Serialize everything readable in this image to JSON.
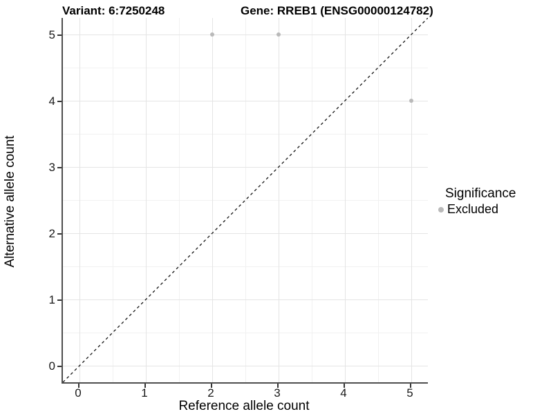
{
  "titles": {
    "variant": "Variant: 6:7250248",
    "gene": "Gene: RREB1 (ENSG00000124782)"
  },
  "legend": {
    "title": "Significance",
    "items": [
      {
        "label": "Excluded",
        "color": "#b9b9b9"
      }
    ]
  },
  "chart_data": {
    "type": "scatter",
    "title": "Variant: 6:7250248 | Gene: RREB1 (ENSG00000124782)",
    "xlabel": "Reference allele count",
    "ylabel": "Alternative allele count",
    "x_ticks": [
      0,
      1,
      2,
      3,
      4,
      5
    ],
    "y_ticks": [
      0,
      1,
      2,
      3,
      4,
      5
    ],
    "xlim": [
      -0.25,
      5.25
    ],
    "ylim": [
      -0.25,
      5.25
    ],
    "grid": true,
    "legend_position": "right",
    "series": [
      {
        "name": "Excluded",
        "color": "#b9b9b9",
        "points": [
          [
            2,
            5
          ],
          [
            3,
            5
          ],
          [
            5,
            4
          ]
        ]
      }
    ],
    "reference_line": {
      "type": "identity y=x",
      "style": "dashed",
      "color": "#111111"
    }
  },
  "colors": {
    "background": "#ffffff",
    "grid_major": "#e4e4e4",
    "grid_minor": "#f1f1f1",
    "axis_line": "#4d4d4d",
    "point": "#b9b9b9",
    "dashed_line": "#111111"
  }
}
